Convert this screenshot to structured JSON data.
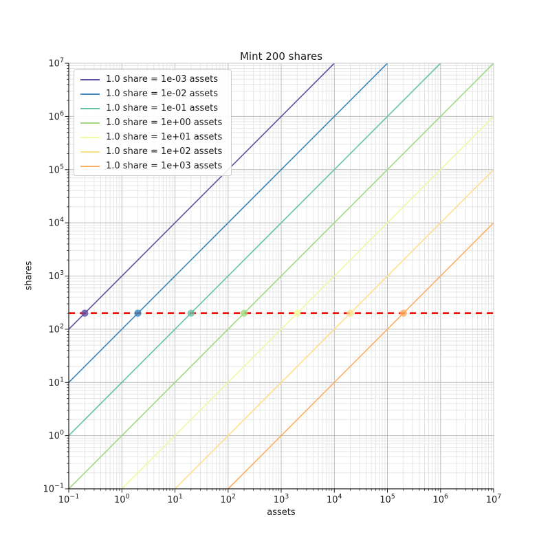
{
  "chart": {
    "title": "Mint 200 shares",
    "xlabel": "assets",
    "ylabel": "shares"
  },
  "chart_data": {
    "type": "line",
    "title": "Mint 200 shares",
    "xlabel": "assets",
    "ylabel": "shares",
    "x_scale": "log",
    "y_scale": "log",
    "xlim": [
      0.1,
      10000000
    ],
    "ylim": [
      0.1,
      10000000
    ],
    "x_tick_exponents": [
      -1,
      0,
      1,
      2,
      3,
      4,
      5,
      6,
      7
    ],
    "y_tick_exponents": [
      -1,
      0,
      1,
      2,
      3,
      4,
      5,
      6,
      7
    ],
    "grid": "both",
    "legend_position": "upper left",
    "target_shares": 200,
    "series": [
      {
        "name": "1.0 share = 1e-03 assets",
        "rate_assets_per_share": 0.001,
        "color": "#5e4fa2",
        "mint_point": {
          "assets": 0.2,
          "shares": 200
        }
      },
      {
        "name": "1.0 share = 1e-02 assets",
        "rate_assets_per_share": 0.01,
        "color": "#3a87bd",
        "mint_point": {
          "assets": 2,
          "shares": 200
        }
      },
      {
        "name": "1.0 share = 1e-01 assets",
        "rate_assets_per_share": 0.1,
        "color": "#66c2a5",
        "mint_point": {
          "assets": 20,
          "shares": 200
        }
      },
      {
        "name": "1.0 share = 1e+00 assets",
        "rate_assets_per_share": 1,
        "color": "#a0da80",
        "mint_point": {
          "assets": 200,
          "shares": 200
        }
      },
      {
        "name": "1.0 share = 1e+01 assets",
        "rate_assets_per_share": 10,
        "color": "#f1f99f",
        "mint_point": {
          "assets": 2000,
          "shares": 200
        }
      },
      {
        "name": "1.0 share = 1e+02 assets",
        "rate_assets_per_share": 100,
        "color": "#fee08b",
        "mint_point": {
          "assets": 20000,
          "shares": 200
        }
      },
      {
        "name": "1.0 share = 1e+03 assets",
        "rate_assets_per_share": 1000,
        "color": "#fdae61",
        "mint_point": {
          "assets": 200000,
          "shares": 200
        }
      }
    ],
    "reference_line": {
      "type": "horizontal",
      "shares": 200,
      "color": "#ee0e0e",
      "style": "dashed"
    },
    "colors": {
      "grid_major": "#bdbdbd",
      "grid_minor": "#e6e6e6",
      "spine_dark": "#1a1a1a",
      "spine_light": "#cbcbcb",
      "text": "#1a1a1a"
    }
  }
}
